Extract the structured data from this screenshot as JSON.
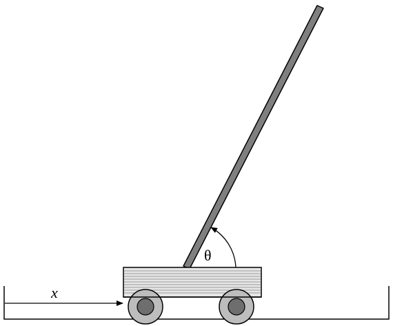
{
  "diagram": {
    "labels": {
      "position": "x",
      "angle": "θ"
    },
    "colors": {
      "pole": "#7f7f7f",
      "cart_body": "#e6e6e6",
      "cart_lines": "#9a9a9a",
      "wheel_outer": "#bdbdbd",
      "wheel_inner": "#6e6e6e",
      "stroke": "#000000"
    }
  }
}
